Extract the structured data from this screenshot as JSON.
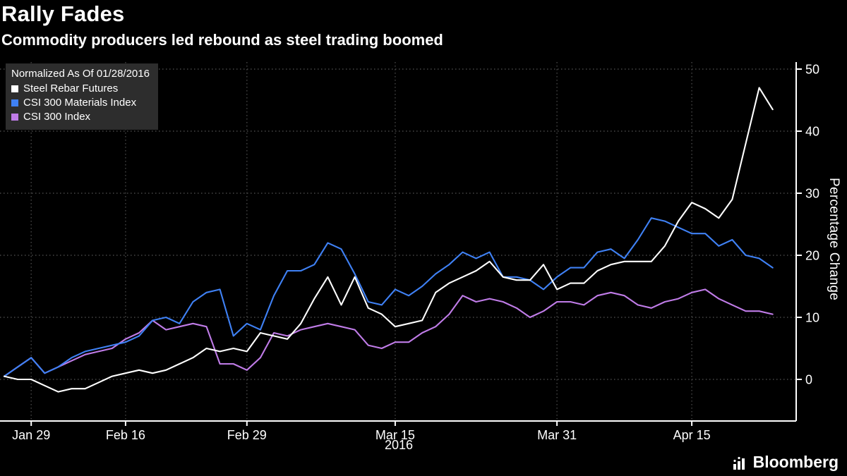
{
  "chart_data": {
    "type": "line",
    "title": "Rally Fades",
    "subtitle": "Commodity producers led rebound as steel trading boomed",
    "legend_note": "Normalized As Of 01/28/2016",
    "ylabel": "Percentage Change",
    "xlabel": "2016",
    "ylim": [
      -6,
      51
    ],
    "yticks": [
      0,
      10,
      20,
      30,
      40,
      50
    ],
    "x_tick_labels": [
      "Jan 29",
      "Feb 16",
      "Feb 29",
      "Mar 15",
      "Mar 31",
      "Apr 15"
    ],
    "x_tick_indices": [
      2,
      9,
      18,
      29,
      41,
      51
    ],
    "grid": "dotted",
    "legend_position": "top-left",
    "series": [
      {
        "name": "Steel Rebar Futures",
        "color": "#ffffff",
        "values": [
          0.5,
          0,
          0,
          -1,
          -2,
          -1.5,
          -1.5,
          -0.5,
          0.5,
          1,
          1.5,
          1,
          1.5,
          2.5,
          3.5,
          5,
          4.5,
          5,
          4.5,
          7.5,
          7,
          6.5,
          9,
          13,
          16.5,
          12,
          16.5,
          11.5,
          10.5,
          8.5,
          9,
          9.5,
          14,
          15.5,
          16.5,
          17.5,
          19,
          16.5,
          16,
          16,
          18.5,
          14.5,
          15.5,
          15.5,
          17.5,
          18.5,
          19,
          19,
          19,
          21.5,
          25.5,
          28.5,
          27.5,
          26,
          29,
          38,
          47,
          43.5
        ]
      },
      {
        "name": "CSI 300 Materials Index",
        "color": "#3f81f5",
        "values": [
          0.5,
          2,
          3.5,
          1,
          2,
          3.5,
          4.5,
          5,
          5.5,
          6,
          7,
          9.5,
          10,
          9,
          12.5,
          14,
          14.5,
          7,
          9,
          8,
          13.5,
          17.5,
          17.5,
          18.5,
          22,
          21,
          17,
          12.5,
          12,
          14.5,
          13.5,
          15,
          17,
          18.5,
          20.5,
          19.5,
          20.5,
          16.5,
          16.5,
          16,
          14.5,
          16.5,
          18,
          18,
          20.5,
          21,
          19.5,
          22.5,
          26,
          25.5,
          24.5,
          23.5,
          23.5,
          21.5,
          22.5,
          20,
          19.5,
          18
        ]
      },
      {
        "name": "CSI 300 Index",
        "color": "#c07ce8",
        "values": [
          0.5,
          2,
          3.5,
          1,
          2,
          3,
          4,
          4.5,
          5,
          6.5,
          7.5,
          9.5,
          8,
          8.5,
          9,
          8.5,
          2.5,
          2.5,
          1.5,
          3.5,
          7.5,
          7,
          8,
          8.5,
          9,
          8.5,
          8,
          5.5,
          5,
          6,
          6,
          7.5,
          8.5,
          10.5,
          13.5,
          12.5,
          13,
          12.5,
          11.5,
          10,
          11,
          12.5,
          12.5,
          12,
          13.5,
          14,
          13.5,
          12,
          11.5,
          12.5,
          13,
          14,
          14.5,
          13,
          12,
          11,
          11,
          10.5
        ]
      }
    ]
  },
  "footer": {
    "brand": "Bloomberg"
  }
}
